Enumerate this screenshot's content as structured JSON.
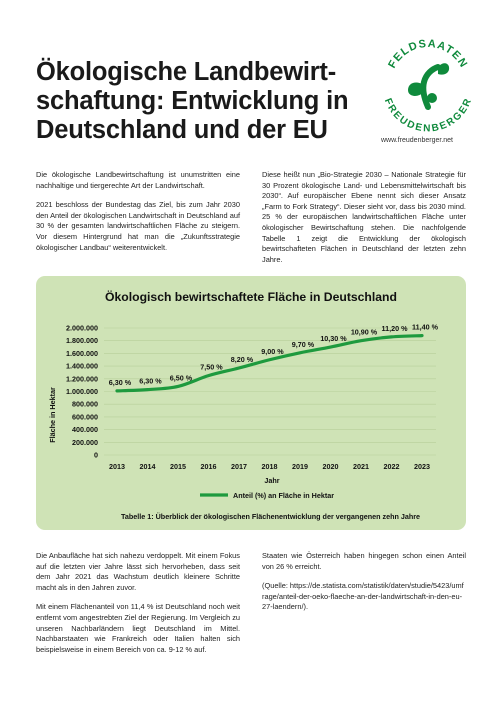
{
  "header": {
    "title": "Ökologische Landbewirt-schaftung: Entwicklung in Deutschland und der EU",
    "logo_text_top": "FELDSAATEN",
    "logo_text_bottom": "FREUDENBERGER",
    "website": "www.freudenberger.net",
    "brand_color": "#0f8a3c"
  },
  "intro_left": [
    "Die ökologische Landbewirtschaftung ist unumstritten eine nachhaltige und tiergerechte Art der Landwirtschaft.",
    "2021 beschloss der Bundestag das Ziel, bis zum Jahr 2030 den Anteil der ökologischen Landwirtschaft in Deutschland auf 30 % der gesamten landwirtschaftlichen Fläche zu steigern. Vor diesem Hintergrund hat man die „Zukunftsstrategie ökologischer Landbau“ weiterentwickelt."
  ],
  "intro_right": [
    "Diese heißt nun „Bio-Strategie 2030 – Nationale Strategie für 30 Prozent ökologische Land- und Lebensmittelwirtschaft bis 2030“. Auf europäischer Ebene nennt sich dieser Ansatz „Farm to Fork Strategy“. Dieser sieht vor, dass bis 2030 mind. 25 % der europäischen landwirtschaftlichen Fläche unter ökologischer Bewirtschaftung stehen. Die nachfolgende Tabelle 1 zeigt die Entwicklung der ökologisch bewirtschafteten Flächen in Deutschland der letzten zehn Jahre."
  ],
  "chart_data": {
    "type": "line",
    "title": "Ökologisch bewirtschaftete Fläche in Deutschland",
    "xlabel": "Jahr",
    "ylabel": "Fläche in Hektar",
    "x": [
      "2013",
      "2014",
      "2015",
      "2016",
      "2017",
      "2018",
      "2019",
      "2020",
      "2021",
      "2022",
      "2023"
    ],
    "series": [
      {
        "name": "Anteil (%) an Fläche in Hektar",
        "values": [
          1010000,
          1030000,
          1080000,
          1250000,
          1370000,
          1500000,
          1610000,
          1700000,
          1800000,
          1860000,
          1880000
        ],
        "labels": [
          "6,30 %",
          "6,30 %",
          "6,50 %",
          "7,50 %",
          "8,20 %",
          "9,00 %",
          "9,70 %",
          "10,30 %",
          "10,90 %",
          "11,20 %",
          "11,40 %"
        ],
        "color": "#1e9a3e"
      }
    ],
    "ylim": [
      0,
      2000000
    ],
    "yticks": [
      0,
      200000,
      400000,
      600000,
      800000,
      1000000,
      1200000,
      1400000,
      1600000,
      1800000,
      2000000
    ],
    "ytick_labels": [
      "0",
      "200.000",
      "400.000",
      "600.000",
      "800.000",
      "1.000.000",
      "1.200.000",
      "1.400.000",
      "1.600.000",
      "1.800.000",
      "2.000.000"
    ],
    "grid": true,
    "legend": "bottom",
    "caption": "Tabelle 1: Überblick der ökologischen Flächenentwicklung der vergangenen zehn Jahre",
    "background_color": "#cfe3b6"
  },
  "body_left": [
    "Die Anbaufläche hat sich nahezu verdoppelt. Mit einem Fokus auf die letzten vier Jahre lässt sich hervorheben, dass seit dem Jahr 2021 das Wachstum deutlich kleinere Schritte macht als in den Jahren zuvor.",
    "Mit einem Flächenanteil von 11,4 % ist Deutschland noch weit entfernt vom angestrebten Ziel der Regierung. Im Vergleich zu unseren Nachbarländern liegt Deutschland im Mittel. Nachbarstaaten wie Frankreich oder Italien halten sich beispielsweise in einem Bereich von ca. 9-12 % auf."
  ],
  "body_right": [
    "Staaten wie Österreich haben hingegen schon einen Anteil von 26 % erreicht.",
    "(Quelle: https://de.statista.com/statistik/daten/studie/5423/umfrage/anteil-der-oeko-flaeche-an-der-landwirtschaft-in-den-eu-27-laendern/)."
  ]
}
